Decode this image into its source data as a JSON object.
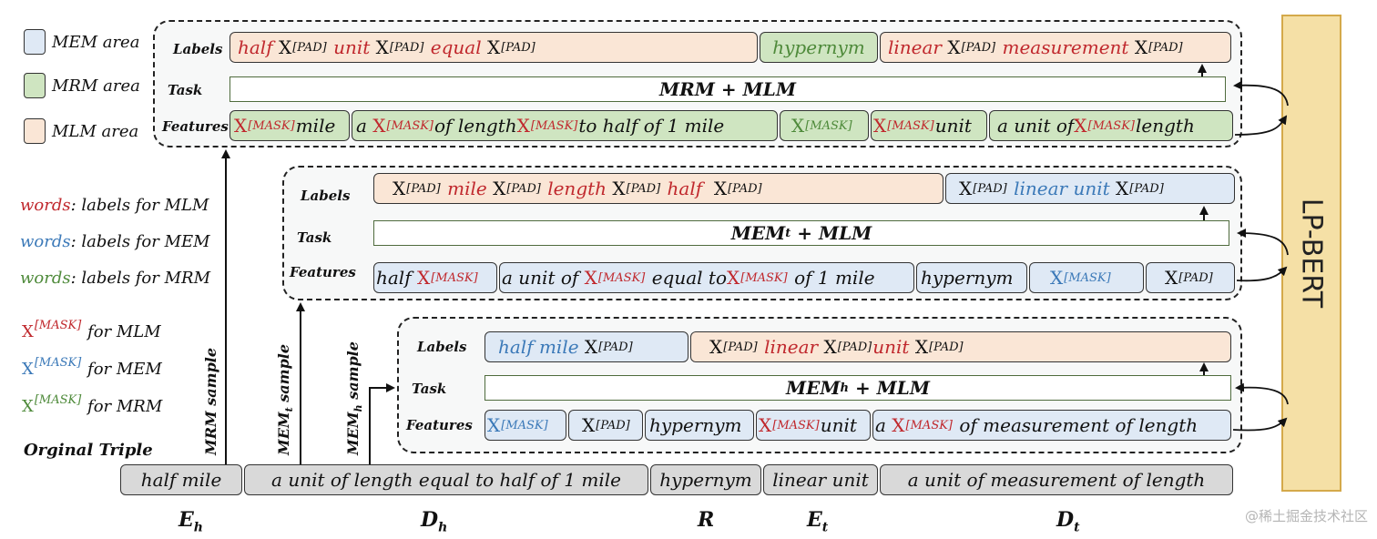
{
  "legend": {
    "mem_area": "MEM area",
    "mrm_area": "MRM area",
    "mlm_area": "MLM area",
    "words_mlm_word": "words",
    "words_mlm_rest": ": labels for MLM",
    "words_mem_word": "words",
    "words_mem_rest": ": labels for MEM",
    "words_mrm_word": "words",
    "words_mrm_rest": ": labels for MRM",
    "x_mask_base": "X",
    "x_mask_sup": "[MASK]",
    "for_mlm": "for MLM",
    "for_mem": "for MEM",
    "for_mrm": "for MRM",
    "original_triple": "Orginal Triple",
    "colors": {
      "mem": "#dfe9f5",
      "mrm": "#cfe5c1",
      "mlm": "#fae6d6"
    }
  },
  "rows": {
    "labels": "Labels",
    "task": "Task",
    "features": "Features"
  },
  "tokens": {
    "x": "X",
    "pad": "[PAD]",
    "mask": "[MASK]"
  },
  "mrm": {
    "task": "MRM + MLM",
    "labels": [
      "half",
      "unit",
      "equal",
      "hypernym",
      "linear",
      "measurement"
    ],
    "features": {
      "f1_word": "mile",
      "f2_a": "a",
      "f2_b": "of length",
      "f2_c": "to half of 1 mile",
      "f4_word": "unit",
      "f5_a": "a unit of",
      "f5_b": "length"
    }
  },
  "memt": {
    "task_a": "MEM",
    "task_sub": "t",
    "task_b": "+ MLM",
    "labels": [
      "mile",
      "length",
      "half",
      "linear unit"
    ],
    "features": {
      "f1_word": "half",
      "f2_a": "a unit of",
      "f2_b": "equal to",
      "f2_c": "of 1 mile",
      "f3": "hypernym"
    }
  },
  "memh": {
    "task_a": "MEM",
    "task_sub": "h",
    "task_b": "+ MLM",
    "labels": [
      "half mile",
      "linear",
      "unit"
    ],
    "features": {
      "f3": "hypernym",
      "f4_word": "unit",
      "f5_a": "a",
      "f5_b": "of measurement of length"
    }
  },
  "triple": [
    "half mile",
    "a unit of length equal to half of 1 mile",
    "hypernym",
    "linear unit",
    "a unit of measurement of length"
  ],
  "bottom": {
    "eh": "E",
    "eh_sub": "h",
    "dh": "D",
    "dh_sub": "h",
    "r": "R",
    "et": "E",
    "et_sub": "t",
    "dt": "D",
    "dt_sub": "t"
  },
  "samples": {
    "mrm": "MRM sample",
    "memt_a": "MEM",
    "memt_sub": "t",
    "memt_b": " sample",
    "memh_a": "MEM",
    "memh_sub": "h",
    "memh_b": " sample"
  },
  "model": "LP-BERT",
  "watermark": "@稀土掘金技术社区"
}
